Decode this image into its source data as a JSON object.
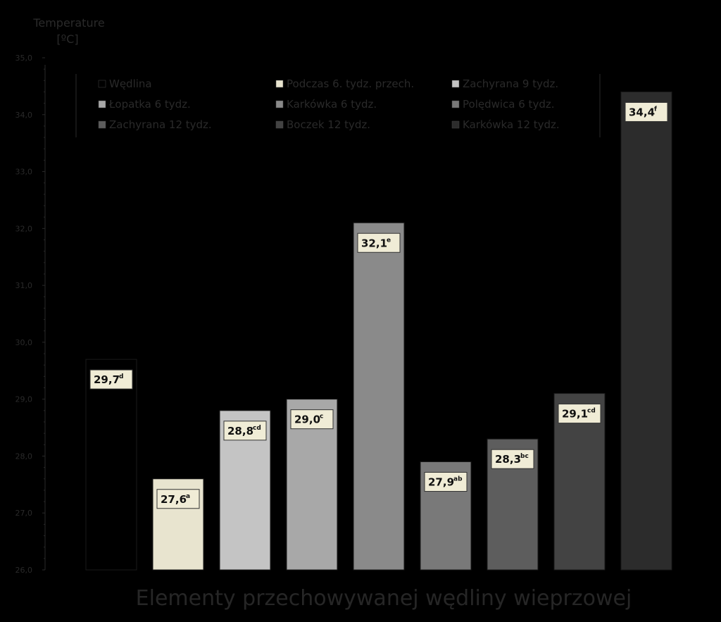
{
  "chart_data": {
    "type": "bar",
    "ylabel": "Temperature\n[ºC]",
    "xlabel": "Elementy przechowywanej wędliny wieprzowej",
    "ylim": [
      26.0,
      35.0
    ],
    "yticks": [
      "26,0",
      "27,0",
      "28,0",
      "29,0",
      "30,0",
      "31,0",
      "32,0",
      "33,0",
      "34,0",
      "35,0"
    ],
    "grid": false,
    "legend_position": "top",
    "series": [
      {
        "name": "Wędlina",
        "value": 29.7,
        "label": "29,7",
        "sup": "d",
        "color": "#000000"
      },
      {
        "name": "Podczas 6. tydz. przech.",
        "value": 27.6,
        "label": "27,6",
        "sup": "a",
        "color": "#e8e4cf"
      },
      {
        "name": "Zachyrana 9 tydz.",
        "value": 28.8,
        "label": "28,8",
        "sup": "cd",
        "color": "#c4c4c4"
      },
      {
        "name": "Łopatka 6 tydz.",
        "value": 29.0,
        "label": "29,0",
        "sup": "c",
        "color": "#a8a8a8"
      },
      {
        "name": "Karkówka 6 tydz.",
        "value": 32.1,
        "label": "32,1",
        "sup": "e",
        "color": "#8a8a8a"
      },
      {
        "name": "Polędwica 6 tydz.",
        "value": 27.9,
        "label": "27,9",
        "sup": "ab",
        "color": "#797979"
      },
      {
        "name": "Zachyrana 12 tydz.",
        "value": 28.3,
        "label": "28,3",
        "sup": "bc",
        "color": "#5d5d5d"
      },
      {
        "name": "Boczek 12 tydz.",
        "value": 29.1,
        "label": "29,1",
        "sup": "cd",
        "color": "#434343"
      },
      {
        "name": "Karkówka 12 tydz.",
        "value": 34.4,
        "label": "34,4",
        "sup": "f",
        "color": "#2c2c2c"
      }
    ]
  }
}
